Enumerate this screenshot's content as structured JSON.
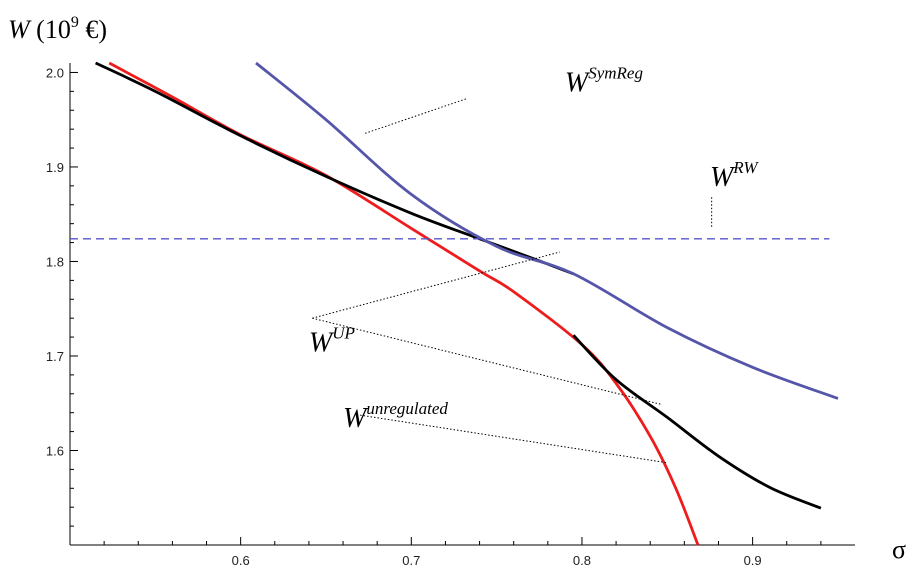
{
  "chart_data": {
    "type": "line",
    "ylabel": "W (10⁹ €)",
    "xlabel": "σ",
    "xlim": [
      0.5,
      0.96
    ],
    "ylim": [
      1.5,
      2.01
    ],
    "xticks": [
      "0.6",
      "0.7",
      "0.8",
      "0.9"
    ],
    "yticks": [
      "1.6",
      "1.7",
      "1.8",
      "1.9",
      "2.0"
    ],
    "grid": false,
    "series": [
      {
        "name": "W^unregulated",
        "color": "#ee1c1c",
        "style": "solid",
        "points": [
          [
            0.523,
            2.01
          ],
          [
            0.56,
            1.974
          ],
          [
            0.6,
            1.934
          ],
          [
            0.65,
            1.891
          ],
          [
            0.7,
            1.835
          ],
          [
            0.74,
            1.79
          ],
          [
            0.76,
            1.768
          ],
          [
            0.8,
            1.712
          ],
          [
            0.82,
            1.671
          ],
          [
            0.84,
            1.615
          ],
          [
            0.855,
            1.56
          ],
          [
            0.868,
            1.5
          ]
        ]
      },
      {
        "name": "W^UP",
        "color": "#000000",
        "style": "solid",
        "segments": [
          [
            [
              0.515,
              2.01
            ],
            [
              0.55,
              1.98
            ],
            [
              0.6,
              1.933
            ],
            [
              0.65,
              1.89
            ],
            [
              0.7,
              1.851
            ],
            [
              0.74,
              1.824
            ],
            [
              0.77,
              1.804
            ],
            [
              0.795,
              1.787
            ]
          ],
          [
            [
              0.795,
              1.722
            ],
            [
              0.82,
              1.675
            ],
            [
              0.85,
              1.635
            ],
            [
              0.88,
              1.594
            ],
            [
              0.91,
              1.561
            ],
            [
              0.94,
              1.539
            ]
          ]
        ]
      },
      {
        "name": "W^SymReg",
        "color": "#5555aa",
        "style": "solid",
        "points": [
          [
            0.609,
            2.01
          ],
          [
            0.65,
            1.95
          ],
          [
            0.7,
            1.871
          ],
          [
            0.75,
            1.816
          ],
          [
            0.795,
            1.787
          ],
          [
            0.85,
            1.73
          ],
          [
            0.9,
            1.688
          ],
          [
            0.95,
            1.655
          ]
        ]
      },
      {
        "name": "W^RW",
        "color": "#5555cc",
        "style": "dashed",
        "points": [
          [
            0.5,
            1.824
          ],
          [
            0.945,
            1.824
          ]
        ]
      }
    ],
    "annotations": [
      {
        "base": "W",
        "sup": "SymReg",
        "lx": 0.79,
        "ly": 1.98,
        "leaders": [
          [
            [
              0.732,
              1.972
            ],
            [
              0.672,
              1.935
            ]
          ]
        ]
      },
      {
        "base": "W",
        "sup": "RW",
        "lx": 0.875,
        "ly": 1.88,
        "leaders": [
          [
            [
              0.876,
              1.868
            ],
            [
              0.876,
              1.836
            ]
          ]
        ]
      },
      {
        "base": "W",
        "sup": "UP",
        "lx": 0.64,
        "ly": 1.705,
        "leaders": [
          [
            [
              0.642,
              1.74
            ],
            [
              0.787,
              1.81
            ]
          ],
          [
            [
              0.642,
              1.74
            ],
            [
              0.846,
              1.649
            ]
          ]
        ]
      },
      {
        "base": "W",
        "sup": "unregulated",
        "lx": 0.66,
        "ly": 1.625,
        "leaders": [
          [
            [
              0.668,
              1.638
            ],
            [
              0.85,
              1.587
            ]
          ]
        ]
      }
    ]
  }
}
